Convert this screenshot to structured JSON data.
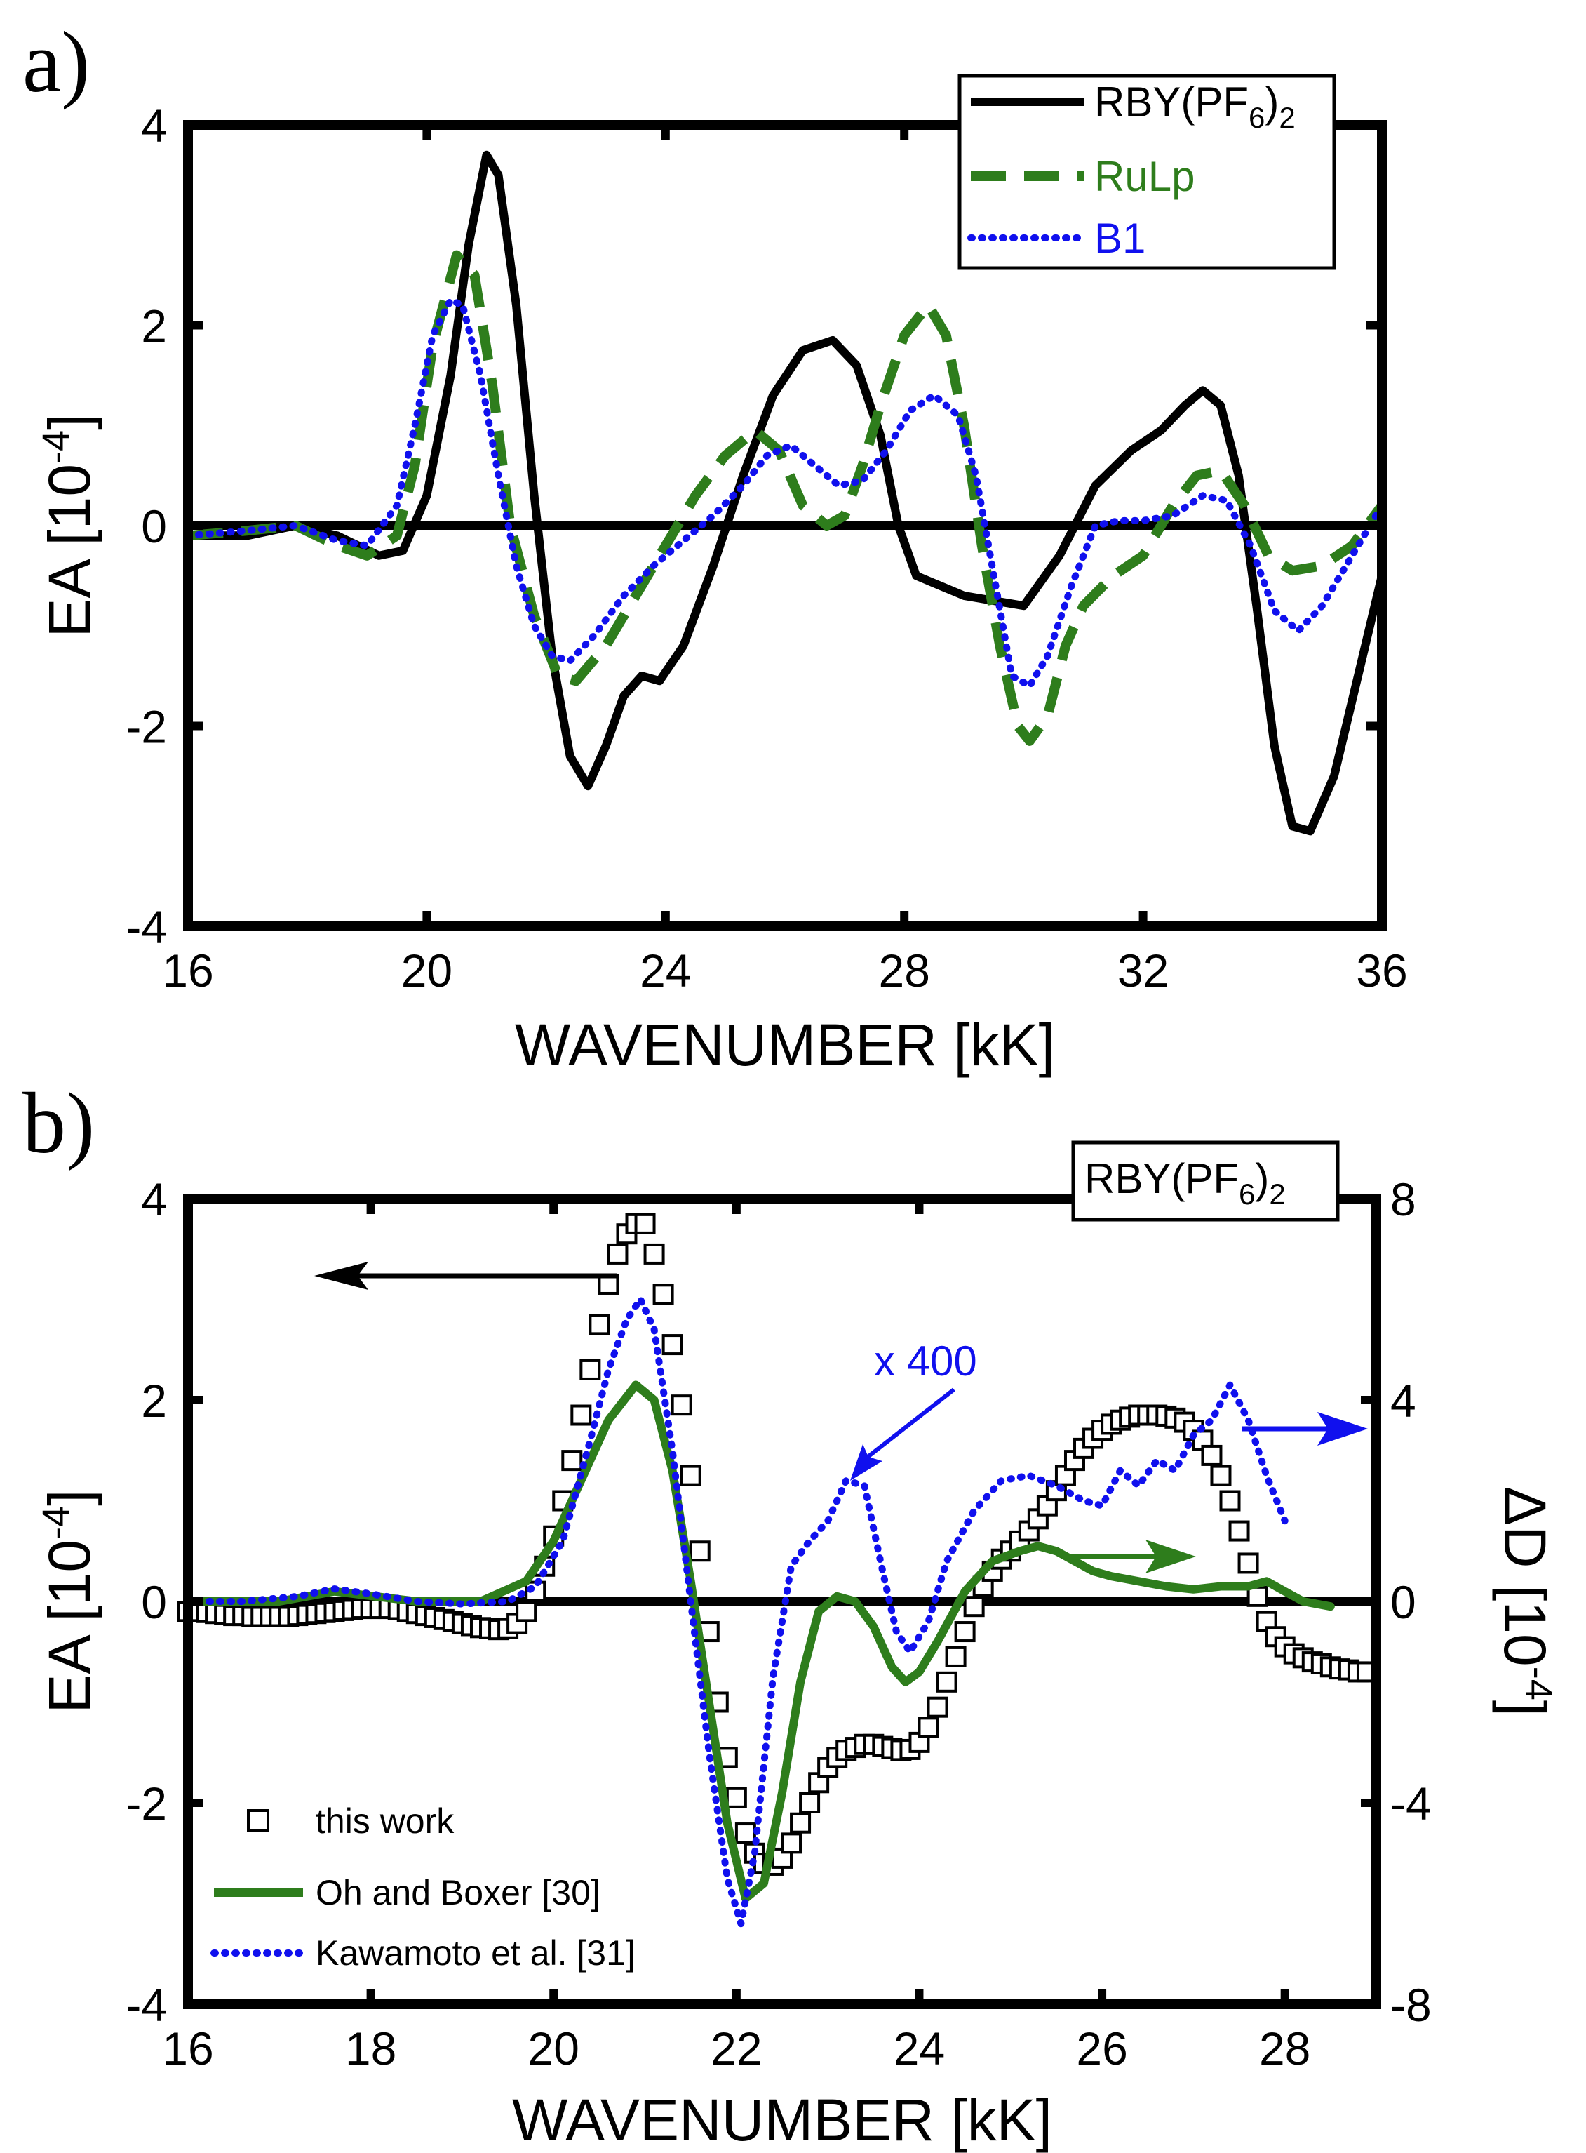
{
  "figure": {
    "panel_a_label": "a)",
    "panel_b_label": "b)"
  },
  "chart_data": [
    {
      "type": "line",
      "panel": "a",
      "xlabel": "WAVENUMBER [kK]",
      "ylabel_main": "EA [10",
      "ylabel_exp": "-4",
      "ylabel_close": "]",
      "xlim": [
        16,
        36
      ],
      "ylim": [
        -4,
        4
      ],
      "xticks": [
        16,
        20,
        24,
        28,
        32,
        36
      ],
      "yticks": [
        4,
        2,
        0,
        -2,
        -4
      ],
      "zero_line": true,
      "legend_position": "top-right",
      "series": [
        {
          "name_main": "RBY(PF",
          "name_sub1": "6",
          "name_close": ")",
          "name_sub2": "2",
          "style": "solid",
          "color": "#000000",
          "x": [
            16,
            17,
            17.8,
            18.5,
            19.2,
            19.6,
            20.0,
            20.4,
            20.7,
            21.0,
            21.2,
            21.5,
            21.8,
            22.1,
            22.4,
            22.7,
            23.0,
            23.3,
            23.6,
            23.9,
            24.3,
            24.8,
            25.3,
            25.8,
            26.3,
            26.8,
            27.2,
            27.6,
            27.9,
            28.2,
            28.6,
            29.0,
            29.5,
            30.0,
            30.6,
            31.2,
            31.8,
            32.3,
            32.7,
            33.0,
            33.3,
            33.6,
            33.9,
            34.2,
            34.5,
            34.8,
            35.2,
            35.6,
            36.0
          ],
          "y": [
            -0.1,
            -0.1,
            0.0,
            -0.1,
            -0.3,
            -0.25,
            0.3,
            1.5,
            2.8,
            3.7,
            3.5,
            2.2,
            0.3,
            -1.3,
            -2.3,
            -2.6,
            -2.2,
            -1.7,
            -1.5,
            -1.55,
            -1.2,
            -0.4,
            0.5,
            1.3,
            1.75,
            1.85,
            1.6,
            0.9,
            0.0,
            -0.5,
            -0.6,
            -0.7,
            -0.75,
            -0.8,
            -0.3,
            0.4,
            0.75,
            0.95,
            1.2,
            1.35,
            1.2,
            0.5,
            -0.8,
            -2.2,
            -3.0,
            -3.05,
            -2.5,
            -1.5,
            -0.5
          ]
        },
        {
          "name": "RuLp",
          "style": "dashed",
          "color": "#2e7d1c",
          "x": [
            16,
            17,
            17.8,
            18.5,
            19.0,
            19.5,
            19.8,
            20.1,
            20.5,
            20.8,
            21.1,
            21.4,
            21.8,
            22.2,
            22.5,
            23.0,
            23.5,
            24.0,
            24.5,
            25.0,
            25.5,
            25.9,
            26.3,
            26.7,
            27.0,
            27.3,
            27.6,
            28.0,
            28.4,
            28.7,
            29.0,
            29.3,
            29.6,
            29.9,
            30.1,
            30.4,
            30.7,
            31.0,
            31.5,
            32.0,
            32.5,
            32.9,
            33.3,
            33.7,
            34.1,
            34.5,
            35.0,
            35.5,
            36.0
          ],
          "y": [
            -0.1,
            -0.05,
            0.0,
            -0.2,
            -0.3,
            -0.1,
            0.6,
            1.8,
            2.7,
            2.5,
            1.4,
            0.0,
            -0.9,
            -1.5,
            -1.55,
            -1.2,
            -0.7,
            -0.2,
            0.3,
            0.7,
            0.95,
            0.75,
            0.2,
            0.0,
            0.1,
            0.6,
            1.2,
            1.9,
            2.2,
            1.9,
            1.0,
            -0.2,
            -1.2,
            -2.0,
            -2.15,
            -1.9,
            -1.2,
            -0.8,
            -0.5,
            -0.3,
            0.2,
            0.5,
            0.55,
            0.2,
            -0.3,
            -0.45,
            -0.4,
            -0.2,
            0.2
          ]
        },
        {
          "name": "B1",
          "style": "dotted",
          "color": "#1010ee",
          "x": [
            16,
            17,
            17.8,
            18.5,
            19.0,
            19.5,
            19.8,
            20.1,
            20.4,
            20.6,
            20.9,
            21.2,
            21.5,
            21.8,
            22.1,
            22.4,
            22.8,
            23.3,
            23.8,
            24.3,
            24.8,
            25.3,
            25.7,
            26.1,
            26.5,
            26.9,
            27.3,
            27.7,
            28.1,
            28.5,
            28.9,
            29.2,
            29.5,
            29.8,
            30.1,
            30.4,
            30.8,
            31.2,
            31.6,
            32.0,
            32.5,
            33.0,
            33.4,
            33.8,
            34.2,
            34.6,
            35.0,
            35.5,
            36.0
          ],
          "y": [
            -0.1,
            -0.05,
            0.0,
            -0.15,
            -0.2,
            0.2,
            1.0,
            1.9,
            2.25,
            2.2,
            1.5,
            0.5,
            -0.4,
            -1.0,
            -1.3,
            -1.35,
            -1.1,
            -0.7,
            -0.4,
            -0.15,
            0.1,
            0.4,
            0.7,
            0.8,
            0.6,
            0.4,
            0.45,
            0.75,
            1.15,
            1.3,
            1.1,
            0.5,
            -0.5,
            -1.5,
            -1.6,
            -1.3,
            -0.6,
            0.0,
            0.05,
            0.05,
            0.1,
            0.3,
            0.25,
            -0.2,
            -0.85,
            -1.05,
            -0.8,
            -0.3,
            0.2
          ]
        }
      ]
    },
    {
      "type": "line",
      "panel": "b",
      "xlabel": "WAVENUMBER [kK]",
      "ylabel_main": "EA [10",
      "ylabel_exp": "-4",
      "ylabel_close": "]",
      "ylabel_right_main": "ΔD [10",
      "ylabel_right_exp": "-4",
      "ylabel_right_close": "]",
      "xlim": [
        16,
        29
      ],
      "ylim": [
        -4,
        4
      ],
      "ylim_right": [
        -8,
        8
      ],
      "xticks": [
        16,
        18,
        20,
        22,
        24,
        26,
        28
      ],
      "yticks": [
        4,
        2,
        0,
        -2,
        -4
      ],
      "yticks_right": [
        8,
        4,
        0,
        -4,
        -8
      ],
      "zero_line": true,
      "legend_position": "bottom-left",
      "title_box_main": "RBY(PF",
      "title_box_sub1": "6",
      "title_box_close": ")",
      "title_box_sub2": "2",
      "annotation": "x 400",
      "series": [
        {
          "name": "this work",
          "style": "markers-square",
          "color": "#000000",
          "axis": "left",
          "x": [
            16.0,
            16.1,
            16.2,
            16.3,
            16.4,
            16.5,
            16.6,
            16.7,
            16.8,
            16.9,
            17.0,
            17.1,
            17.2,
            17.3,
            17.4,
            17.5,
            17.6,
            17.7,
            17.8,
            17.9,
            18.0,
            18.1,
            18.2,
            18.3,
            18.4,
            18.5,
            18.6,
            18.7,
            18.8,
            18.9,
            19.0,
            19.1,
            19.2,
            19.3,
            19.4,
            19.5,
            19.6,
            19.7,
            19.8,
            19.9,
            20.0,
            20.1,
            20.2,
            20.3,
            20.4,
            20.5,
            20.6,
            20.7,
            20.8,
            20.9,
            21.0,
            21.1,
            21.2,
            21.3,
            21.4,
            21.5,
            21.6,
            21.7,
            21.8,
            21.9,
            22.0,
            22.1,
            22.2,
            22.3,
            22.4,
            22.5,
            22.6,
            22.7,
            22.8,
            22.9,
            23.0,
            23.1,
            23.2,
            23.3,
            23.4,
            23.5,
            23.6,
            23.7,
            23.8,
            23.9,
            24.0,
            24.1,
            24.2,
            24.3,
            24.4,
            24.5,
            24.6,
            24.7,
            24.8,
            24.9,
            25.0,
            25.1,
            25.2,
            25.3,
            25.4,
            25.5,
            25.6,
            25.7,
            25.8,
            25.9,
            26.0,
            26.1,
            26.2,
            26.3,
            26.4,
            26.5,
            26.6,
            26.7,
            26.8,
            26.9,
            27.0,
            27.1,
            27.2,
            27.3,
            27.4,
            27.5,
            27.6,
            27.7,
            27.8,
            27.9,
            28.0,
            28.1,
            28.2,
            28.3,
            28.4,
            28.5,
            28.6,
            28.7,
            28.8,
            28.9
          ],
          "y": [
            -0.1,
            -0.1,
            -0.11,
            -0.12,
            -0.13,
            -0.14,
            -0.14,
            -0.15,
            -0.15,
            -0.15,
            -0.15,
            -0.15,
            -0.14,
            -0.13,
            -0.12,
            -0.11,
            -0.1,
            -0.09,
            -0.08,
            -0.07,
            -0.07,
            -0.07,
            -0.07,
            -0.08,
            -0.1,
            -0.12,
            -0.14,
            -0.16,
            -0.18,
            -0.2,
            -0.22,
            -0.24,
            -0.26,
            -0.27,
            -0.28,
            -0.27,
            -0.22,
            -0.1,
            0.1,
            0.35,
            0.65,
            1.0,
            1.4,
            1.85,
            2.3,
            2.75,
            3.15,
            3.45,
            3.65,
            3.75,
            3.75,
            3.45,
            3.05,
            2.55,
            1.95,
            1.25,
            0.5,
            -0.3,
            -1.0,
            -1.55,
            -1.95,
            -2.3,
            -2.5,
            -2.6,
            -2.62,
            -2.55,
            -2.4,
            -2.2,
            -2.0,
            -1.8,
            -1.65,
            -1.55,
            -1.48,
            -1.45,
            -1.42,
            -1.42,
            -1.44,
            -1.46,
            -1.48,
            -1.47,
            -1.4,
            -1.25,
            -1.05,
            -0.8,
            -0.55,
            -0.3,
            -0.05,
            0.15,
            0.3,
            0.42,
            0.5,
            0.6,
            0.7,
            0.82,
            0.95,
            1.1,
            1.25,
            1.4,
            1.52,
            1.62,
            1.7,
            1.76,
            1.8,
            1.83,
            1.85,
            1.85,
            1.85,
            1.84,
            1.82,
            1.78,
            1.7,
            1.6,
            1.45,
            1.25,
            1.0,
            0.7,
            0.38,
            0.05,
            -0.2,
            -0.35,
            -0.45,
            -0.52,
            -0.56,
            -0.6,
            -0.62,
            -0.65,
            -0.67,
            -0.68,
            -0.7,
            -0.7
          ]
        },
        {
          "name": "Oh and Boxer [30]",
          "style": "solid",
          "color": "#2e7d1c",
          "axis": "left",
          "x": [
            16.0,
            17.0,
            17.6,
            18.5,
            19.2,
            19.7,
            20.0,
            20.3,
            20.6,
            20.9,
            21.1,
            21.3,
            21.5,
            21.7,
            21.9,
            22.1,
            22.3,
            22.5,
            22.7,
            22.9,
            23.1,
            23.3,
            23.5,
            23.7,
            23.85,
            24.0,
            24.2,
            24.5,
            24.8,
            25.1,
            25.3,
            25.5,
            25.7,
            25.9,
            26.1,
            26.4,
            26.7,
            27.0,
            27.3,
            27.6,
            27.8,
            28.0,
            28.2,
            28.5
          ],
          "y": [
            0.0,
            0.0,
            0.1,
            0.0,
            0.0,
            0.2,
            0.6,
            1.2,
            1.8,
            2.15,
            2.0,
            1.3,
            0.2,
            -1.0,
            -2.2,
            -2.95,
            -2.8,
            -1.9,
            -0.8,
            -0.1,
            0.05,
            0.0,
            -0.25,
            -0.65,
            -0.8,
            -0.7,
            -0.4,
            0.1,
            0.4,
            0.5,
            0.55,
            0.5,
            0.4,
            0.3,
            0.25,
            0.2,
            0.15,
            0.12,
            0.15,
            0.15,
            0.2,
            0.1,
            0.0,
            -0.05
          ]
        },
        {
          "name": "Kawamoto et al. [31]",
          "style": "dotted",
          "color": "#1010ee",
          "axis": "right",
          "x": [
            16.0,
            16.6,
            17.2,
            17.6,
            18.0,
            18.5,
            19.0,
            19.5,
            19.8,
            20.1,
            20.4,
            20.6,
            20.8,
            20.95,
            21.1,
            21.3,
            21.5,
            21.7,
            21.9,
            22.05,
            22.2,
            22.4,
            22.6,
            22.8,
            23.0,
            23.2,
            23.4,
            23.6,
            23.75,
            23.9,
            24.1,
            24.3,
            24.6,
            24.9,
            25.2,
            25.5,
            25.8,
            26.0,
            26.2,
            26.4,
            26.6,
            26.8,
            27.0,
            27.2,
            27.4,
            27.6,
            27.8,
            28.0
          ],
          "y": [
            0.0,
            0.0,
            0.1,
            0.25,
            0.15,
            0.0,
            -0.05,
            0.0,
            0.3,
            1.2,
            3.2,
            4.6,
            5.6,
            6.0,
            5.4,
            3.0,
            0.0,
            -3.0,
            -5.5,
            -6.4,
            -5.0,
            -1.5,
            0.7,
            1.2,
            1.6,
            2.4,
            2.3,
            0.6,
            -0.6,
            -1.0,
            -0.4,
            0.8,
            1.8,
            2.4,
            2.5,
            2.3,
            2.0,
            1.9,
            2.6,
            2.3,
            2.8,
            2.6,
            3.3,
            3.6,
            4.3,
            3.6,
            2.5,
            1.6
          ]
        }
      ]
    }
  ]
}
